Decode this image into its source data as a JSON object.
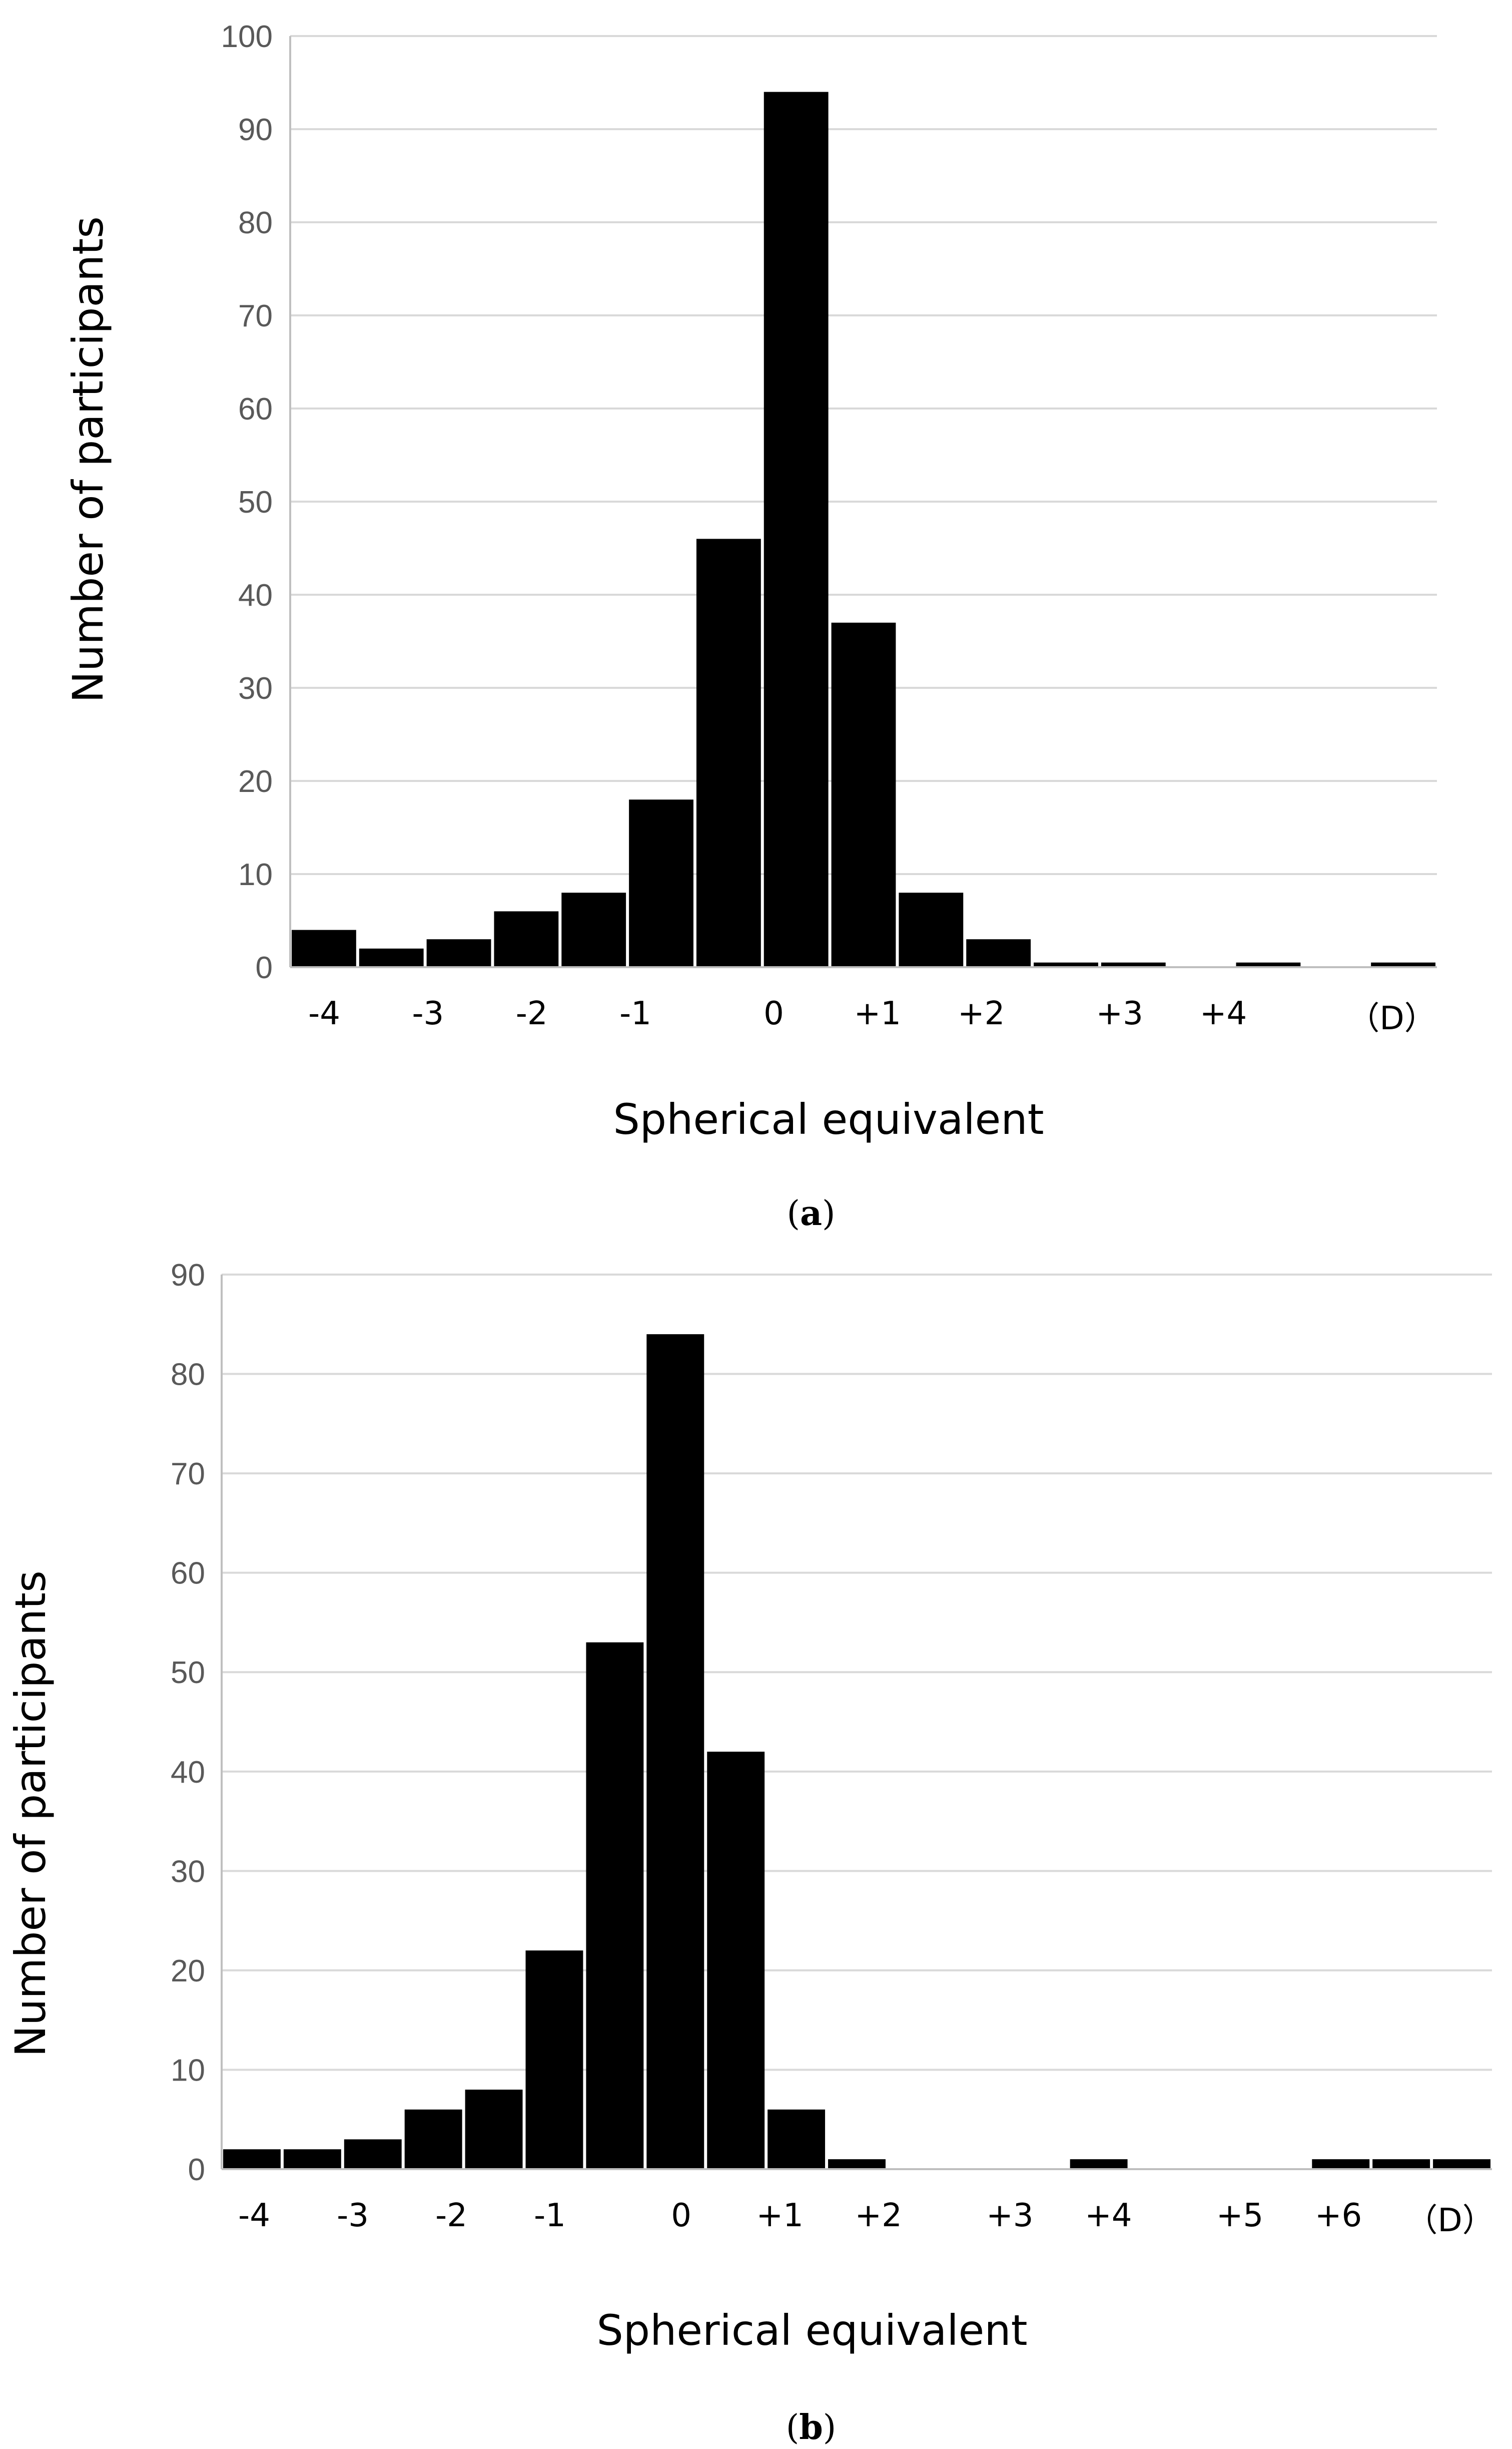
{
  "colors": {
    "bar": "#000000",
    "grid": "#d9d9d9",
    "axis": "#bfbfbf",
    "y_tick_text": "#595959",
    "background": "#ffffff"
  },
  "panels": [
    {
      "caption_open": "(",
      "caption_letter": "a",
      "caption_close": ")"
    },
    {
      "caption_open": "(",
      "caption_letter": "b",
      "caption_close": ")"
    }
  ],
  "chart_data": [
    {
      "type": "bar",
      "title": "",
      "xlabel": "Spherical equivalent",
      "ylabel": "Number of participants",
      "ylim": [
        0,
        100
      ],
      "y_ticks": [
        0,
        10,
        20,
        30,
        40,
        50,
        60,
        70,
        80,
        90,
        100
      ],
      "grid": true,
      "legend": "none",
      "unit_label": "（D）",
      "x_tick_labels": [
        "-4",
        "-3",
        "-2",
        "-1",
        "0",
        "+1",
        "+2",
        "+3",
        "+4"
      ],
      "x_tick_positions": [
        0,
        1.5,
        3,
        4.5,
        6.5,
        8,
        9.5,
        11.5,
        13
      ],
      "values": [
        4,
        2,
        3,
        6,
        8,
        18,
        46,
        94,
        37,
        8,
        3,
        0.5,
        0.5,
        0,
        0.5,
        0,
        0.5
      ]
    },
    {
      "type": "bar",
      "title": "",
      "xlabel": "Spherical equivalent",
      "ylabel": "Number of participants",
      "ylim": [
        0,
        90
      ],
      "y_ticks": [
        0,
        10,
        20,
        30,
        40,
        50,
        60,
        70,
        80,
        90
      ],
      "grid": true,
      "legend": "none",
      "unit_label": "（D）",
      "x_tick_labels": [
        "-4",
        "-3",
        "-2",
        "-1",
        "0",
        "+1",
        "+2",
        "+3",
        "+4",
        "+5",
        "+6"
      ],
      "x_tick_positions": [
        0,
        1.5,
        3,
        4.5,
        6.5,
        8,
        9.5,
        11.5,
        13,
        15,
        16.5
      ],
      "values": [
        2,
        2,
        3,
        6,
        8,
        22,
        53,
        84,
        42,
        6,
        1,
        0,
        0,
        0,
        1,
        0,
        0,
        0,
        1,
        1,
        1
      ]
    }
  ]
}
